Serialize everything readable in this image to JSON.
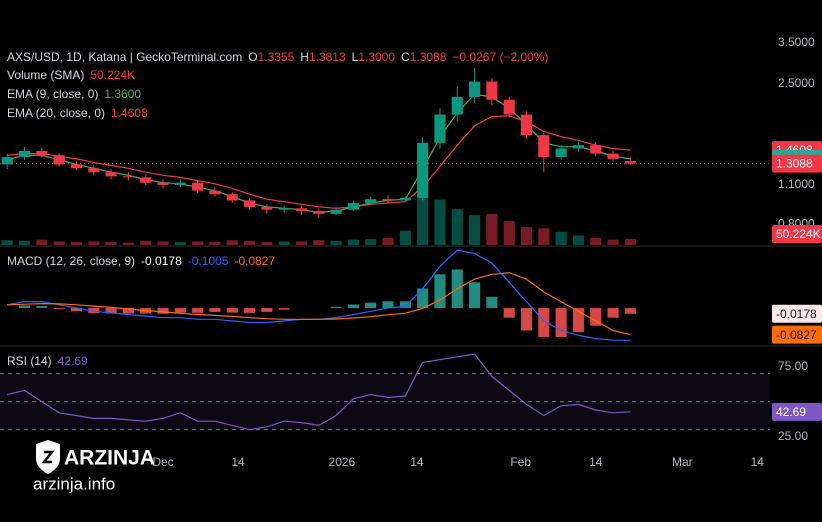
{
  "chart_data": [
    {
      "type": "candlestick",
      "title": "AXS/USD, 1D, Katana | GeckoTerminal.com",
      "ohlc_labels": [
        {
          "label": "O",
          "value": "1.3355"
        },
        {
          "label": "H",
          "value": "1.3813"
        },
        {
          "label": "L",
          "value": "1.3000"
        },
        {
          "label": "C",
          "value": "1.3088"
        }
      ],
      "change": "−0.0267 (−2.00%)",
      "up_color": "#089981",
      "down_color": "#f23645",
      "x": [
        -27,
        -24,
        -21,
        -18,
        -15,
        -12,
        -9,
        -6,
        -3,
        0,
        3,
        6,
        9,
        12,
        15,
        18,
        21,
        24,
        27,
        30,
        33,
        36,
        39,
        42,
        45,
        48,
        51,
        54,
        57,
        60,
        63,
        66,
        69,
        72,
        75,
        78,
        81
      ],
      "xlim": [
        -28.25,
        105.2
      ],
      "xticks": [
        {
          "value": 0,
          "label": "Dec"
        },
        {
          "value": 13,
          "label": "14"
        },
        {
          "value": 31,
          "label": "2026"
        },
        {
          "value": 44,
          "label": "14"
        },
        {
          "value": 62,
          "label": "Feb"
        },
        {
          "value": 75,
          "label": "14"
        },
        {
          "value": 90,
          "label": "Mar"
        },
        {
          "value": 103,
          "label": "14"
        }
      ],
      "open": [
        1.3,
        1.38,
        1.45,
        1.4,
        1.3,
        1.26,
        1.22,
        1.18,
        1.17,
        1.12,
        1.1,
        1.12,
        1.05,
        1.02,
        0.97,
        0.92,
        0.9,
        0.91,
        0.89,
        0.87,
        0.9,
        0.95,
        0.98,
        0.97,
        0.99,
        1.55,
        1.95,
        2.25,
        2.55,
        2.2,
        1.95,
        1.65,
        1.38,
        1.48,
        1.52,
        1.42,
        1.3355
      ],
      "high": [
        1.42,
        1.5,
        1.49,
        1.42,
        1.33,
        1.29,
        1.25,
        1.22,
        1.19,
        1.15,
        1.15,
        1.14,
        1.08,
        1.04,
        0.99,
        0.94,
        0.93,
        0.93,
        0.91,
        0.92,
        0.97,
        1.0,
        1.01,
        1.0,
        1.62,
        2.05,
        2.45,
        2.85,
        2.62,
        2.25,
        2.0,
        1.68,
        1.52,
        1.58,
        1.56,
        1.45,
        1.3813
      ],
      "low": [
        1.25,
        1.35,
        1.38,
        1.28,
        1.24,
        1.19,
        1.15,
        1.14,
        1.1,
        1.07,
        1.08,
        1.03,
        1.0,
        0.95,
        0.9,
        0.87,
        0.88,
        0.86,
        0.84,
        0.86,
        0.89,
        0.94,
        0.95,
        0.96,
        0.97,
        1.48,
        1.85,
        2.15,
        2.1,
        1.9,
        1.6,
        1.22,
        1.35,
        1.44,
        1.39,
        1.33,
        1.3
      ],
      "close": [
        1.38,
        1.45,
        1.4,
        1.3,
        1.26,
        1.22,
        1.18,
        1.17,
        1.12,
        1.1,
        1.12,
        1.05,
        1.02,
        0.97,
        0.92,
        0.9,
        0.91,
        0.89,
        0.87,
        0.9,
        0.95,
        0.98,
        0.97,
        0.99,
        1.55,
        1.95,
        2.25,
        2.55,
        2.2,
        1.95,
        1.65,
        1.38,
        1.48,
        1.52,
        1.42,
        1.36,
        1.3088
      ],
      "log_scale": true,
      "ylim": [
        0.675,
        4.95
      ],
      "yticks": [
        {
          "value": 3.5,
          "label": "3.5000"
        },
        {
          "value": 2.5,
          "label": "2.5000"
        },
        {
          "value": 1.1,
          "label": "1.1000"
        },
        {
          "value": 0.8,
          "label": "0.8000"
        }
      ],
      "volume": {
        "name": "Volume (SMA)",
        "legend_value": "50.224K",
        "values": [
          40,
          35,
          45,
          30,
          25,
          30,
          25,
          20,
          35,
          30,
          25,
          30,
          25,
          40,
          35,
          25,
          30,
          30,
          40,
          35,
          45,
          50,
          60,
          120,
          420,
          380,
          300,
          250,
          260,
          200,
          150,
          140,
          110,
          80,
          60,
          45,
          50.224
        ],
        "vlim": [
          0,
          2050
        ],
        "tag": {
          "value": 50.224,
          "label": "50.224K",
          "color": "#f23645"
        }
      },
      "series": [
        {
          "name": "EMA (9, close, 0)",
          "color": "#4caf50",
          "legend_value": "1.3600",
          "values": [
            1.35,
            1.4,
            1.4,
            1.35,
            1.3,
            1.26,
            1.22,
            1.19,
            1.15,
            1.12,
            1.11,
            1.08,
            1.05,
            1.0,
            0.95,
            0.92,
            0.91,
            0.9,
            0.88,
            0.89,
            0.92,
            0.95,
            0.97,
            0.98,
            1.25,
            1.62,
            1.98,
            2.3,
            2.25,
            2.05,
            1.8,
            1.55,
            1.5,
            1.5,
            1.45,
            1.39,
            1.36
          ]
        },
        {
          "name": "EMA (20, close, 0)",
          "color": "#f23645",
          "legend_value": "1.4608",
          "values": [
            1.4,
            1.42,
            1.42,
            1.39,
            1.36,
            1.32,
            1.29,
            1.26,
            1.22,
            1.19,
            1.17,
            1.14,
            1.11,
            1.07,
            1.02,
            0.98,
            0.96,
            0.94,
            0.92,
            0.91,
            0.92,
            0.94,
            0.95,
            0.96,
            1.08,
            1.28,
            1.52,
            1.78,
            1.92,
            1.93,
            1.84,
            1.7,
            1.63,
            1.58,
            1.52,
            1.48,
            1.4608
          ]
        }
      ],
      "price_tags": [
        {
          "value": 1.4608,
          "label": "1.4608",
          "color": "#f23645"
        },
        {
          "value": 1.36,
          "label": "1.3600",
          "color": "#22ab94"
        },
        {
          "value": 1.3088,
          "label": "1.3088",
          "color": "#f23645"
        }
      ]
    },
    {
      "type": "macd",
      "title": "MACD (12, 26, close, 9)",
      "ylim": [
        -0.115,
        0.19
      ],
      "histogram": {
        "up_color": "#26a69a",
        "down_color": "#ff5252",
        "legend_value": "-0.0178",
        "values": [
          0,
          0.008,
          0.006,
          -0.003,
          -0.01,
          -0.016,
          -0.017,
          -0.017,
          -0.017,
          -0.018,
          -0.014,
          -0.015,
          -0.012,
          -0.014,
          -0.015,
          -0.012,
          -0.005,
          0,
          0,
          0.004,
          0.011,
          0.017,
          0.021,
          0.021,
          0.061,
          0.105,
          0.12,
          0.08,
          0.035,
          -0.03,
          -0.07,
          -0.09,
          -0.09,
          -0.075,
          -0.055,
          -0.03,
          -0.0178
        ]
      },
      "series": [
        {
          "color": "#2962ff",
          "legend_value": "-0.1005",
          "values": [
            0.01,
            0.02,
            0.02,
            0.01,
            0,
            -0.01,
            -0.015,
            -0.02,
            -0.025,
            -0.03,
            -0.03,
            -0.035,
            -0.035,
            -0.04,
            -0.045,
            -0.045,
            -0.04,
            -0.035,
            -0.035,
            -0.03,
            -0.02,
            -0.01,
            0,
            0.005,
            0.06,
            0.13,
            0.18,
            0.17,
            0.14,
            0.08,
            0.02,
            -0.04,
            -0.07,
            -0.085,
            -0.095,
            -0.1,
            -0.1005
          ]
        },
        {
          "color": "#ff6d00",
          "legend_value": "-0.0827",
          "values": [
            0.01,
            0.012,
            0.014,
            0.013,
            0.01,
            0.006,
            0.002,
            -0.003,
            -0.008,
            -0.012,
            -0.016,
            -0.02,
            -0.023,
            -0.026,
            -0.03,
            -0.033,
            -0.035,
            -0.035,
            -0.035,
            -0.034,
            -0.031,
            -0.027,
            -0.021,
            -0.016,
            -0.001,
            0.025,
            0.06,
            0.09,
            0.105,
            0.11,
            0.09,
            0.05,
            0.02,
            -0.01,
            -0.04,
            -0.07,
            -0.0827
          ]
        }
      ],
      "tags": [
        {
          "value": -0.0178,
          "label": "-0.0178",
          "color": "#fbe9e7",
          "text_color": "#131722"
        },
        {
          "value": -0.0827,
          "label": "-0.0827",
          "color": "#ff6d00",
          "text_color": "#131722"
        }
      ]
    },
    {
      "type": "line",
      "title": "RSI (14)",
      "ylim": [
        19,
        89
      ],
      "yticks": [
        {
          "value": 75,
          "label": "75.00"
        },
        {
          "value": 25,
          "label": "25.00"
        }
      ],
      "levels": [
        70,
        50,
        30
      ],
      "series": [
        {
          "color": "#7e57c2",
          "legend_value": "42.69",
          "values": [
            55,
            58,
            50,
            42,
            40,
            38,
            38,
            37,
            36,
            38,
            42,
            36,
            36,
            33,
            30,
            32,
            36,
            35,
            33,
            40,
            52,
            55,
            53,
            54,
            78,
            80,
            82,
            84,
            68,
            58,
            48,
            40,
            47,
            48,
            44,
            42,
            42.69
          ]
        }
      ],
      "tags": [
        {
          "value": 42.69,
          "label": "42.69",
          "color": "#7e57c2",
          "text_color": "#ffffff"
        }
      ]
    }
  ],
  "watermark": {
    "brand": "ARZINJA",
    "site": "arzinja.info"
  }
}
